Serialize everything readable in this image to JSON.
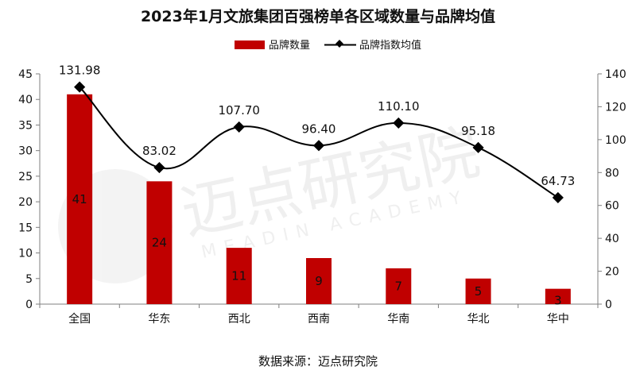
{
  "title": "2023年1月文旅集团百强榜单各区域数量与品牌均值",
  "source": "数据来源：迈点研究院",
  "watermark": {
    "cn": "迈点研究院",
    "en": "MEADIN ACADEMY"
  },
  "colors": {
    "bar": "#c00000",
    "line": "#000000",
    "axis": "#7f7f7f"
  },
  "chart_data": {
    "type": "bar",
    "categories": [
      "全国",
      "华东",
      "西北",
      "西南",
      "华南",
      "华北",
      "华中"
    ],
    "series": [
      {
        "name": "品牌数量",
        "type": "bar",
        "axis": "left",
        "values": [
          41,
          24,
          11,
          9,
          7,
          5,
          3
        ],
        "labels": [
          "41",
          "24",
          "11",
          "9",
          "7",
          "5",
          "3"
        ]
      },
      {
        "name": "品牌指数均值",
        "type": "line",
        "axis": "right",
        "values": [
          131.98,
          83.02,
          107.7,
          96.4,
          110.1,
          95.18,
          64.73
        ],
        "labels": [
          "131.98",
          "83.02",
          "107.70",
          "96.40",
          "110.10",
          "95.18",
          "64.73"
        ]
      }
    ],
    "left_axis": {
      "min": 0,
      "max": 45,
      "ticks": [
        "0",
        "5",
        "10",
        "15",
        "20",
        "25",
        "30",
        "35",
        "40",
        "45"
      ]
    },
    "right_axis": {
      "min": 0,
      "max": 140,
      "ticks": [
        "0",
        "20",
        "40",
        "60",
        "80",
        "100",
        "120",
        "140"
      ]
    },
    "legend_position": "top-center",
    "grid": false
  }
}
